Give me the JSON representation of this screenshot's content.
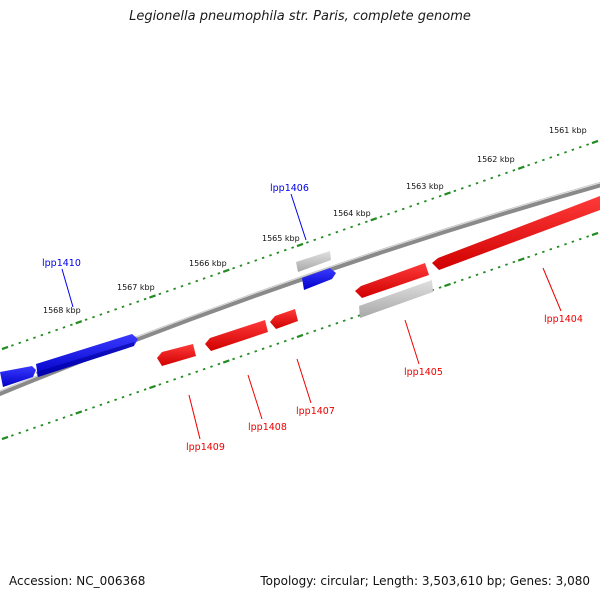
{
  "title": "Legionella pneumophila str. Paris, complete genome",
  "footer": {
    "accession": "Accession: NC_006368",
    "summary": "Topology: circular; Length: 3,503,610 bp; Genes: 3,080"
  },
  "colors": {
    "forward_gene": "#0000ee",
    "reverse_gene": "#ee0000",
    "pseudo_gene": "#b4b4b4",
    "backbone": "#7a7a7a",
    "ticks": "#228b22"
  },
  "chart_data": {
    "type": "genome-map",
    "scale_labels": [
      "1561 kbp",
      "1562 kbp",
      "1563 kbp",
      "1564 kbp",
      "1565 kbp",
      "1566 kbp",
      "1567 kbp",
      "1568 kbp"
    ],
    "gene_labels": [
      {
        "name": "lpp1406",
        "strand": "forward"
      },
      {
        "name": "lpp1410",
        "strand": "forward"
      },
      {
        "name": "lpp1404",
        "strand": "reverse"
      },
      {
        "name": "lpp1405",
        "strand": "reverse"
      },
      {
        "name": "lpp1407",
        "strand": "reverse"
      },
      {
        "name": "lpp1408",
        "strand": "reverse"
      },
      {
        "name": "lpp1409",
        "strand": "reverse"
      }
    ]
  }
}
